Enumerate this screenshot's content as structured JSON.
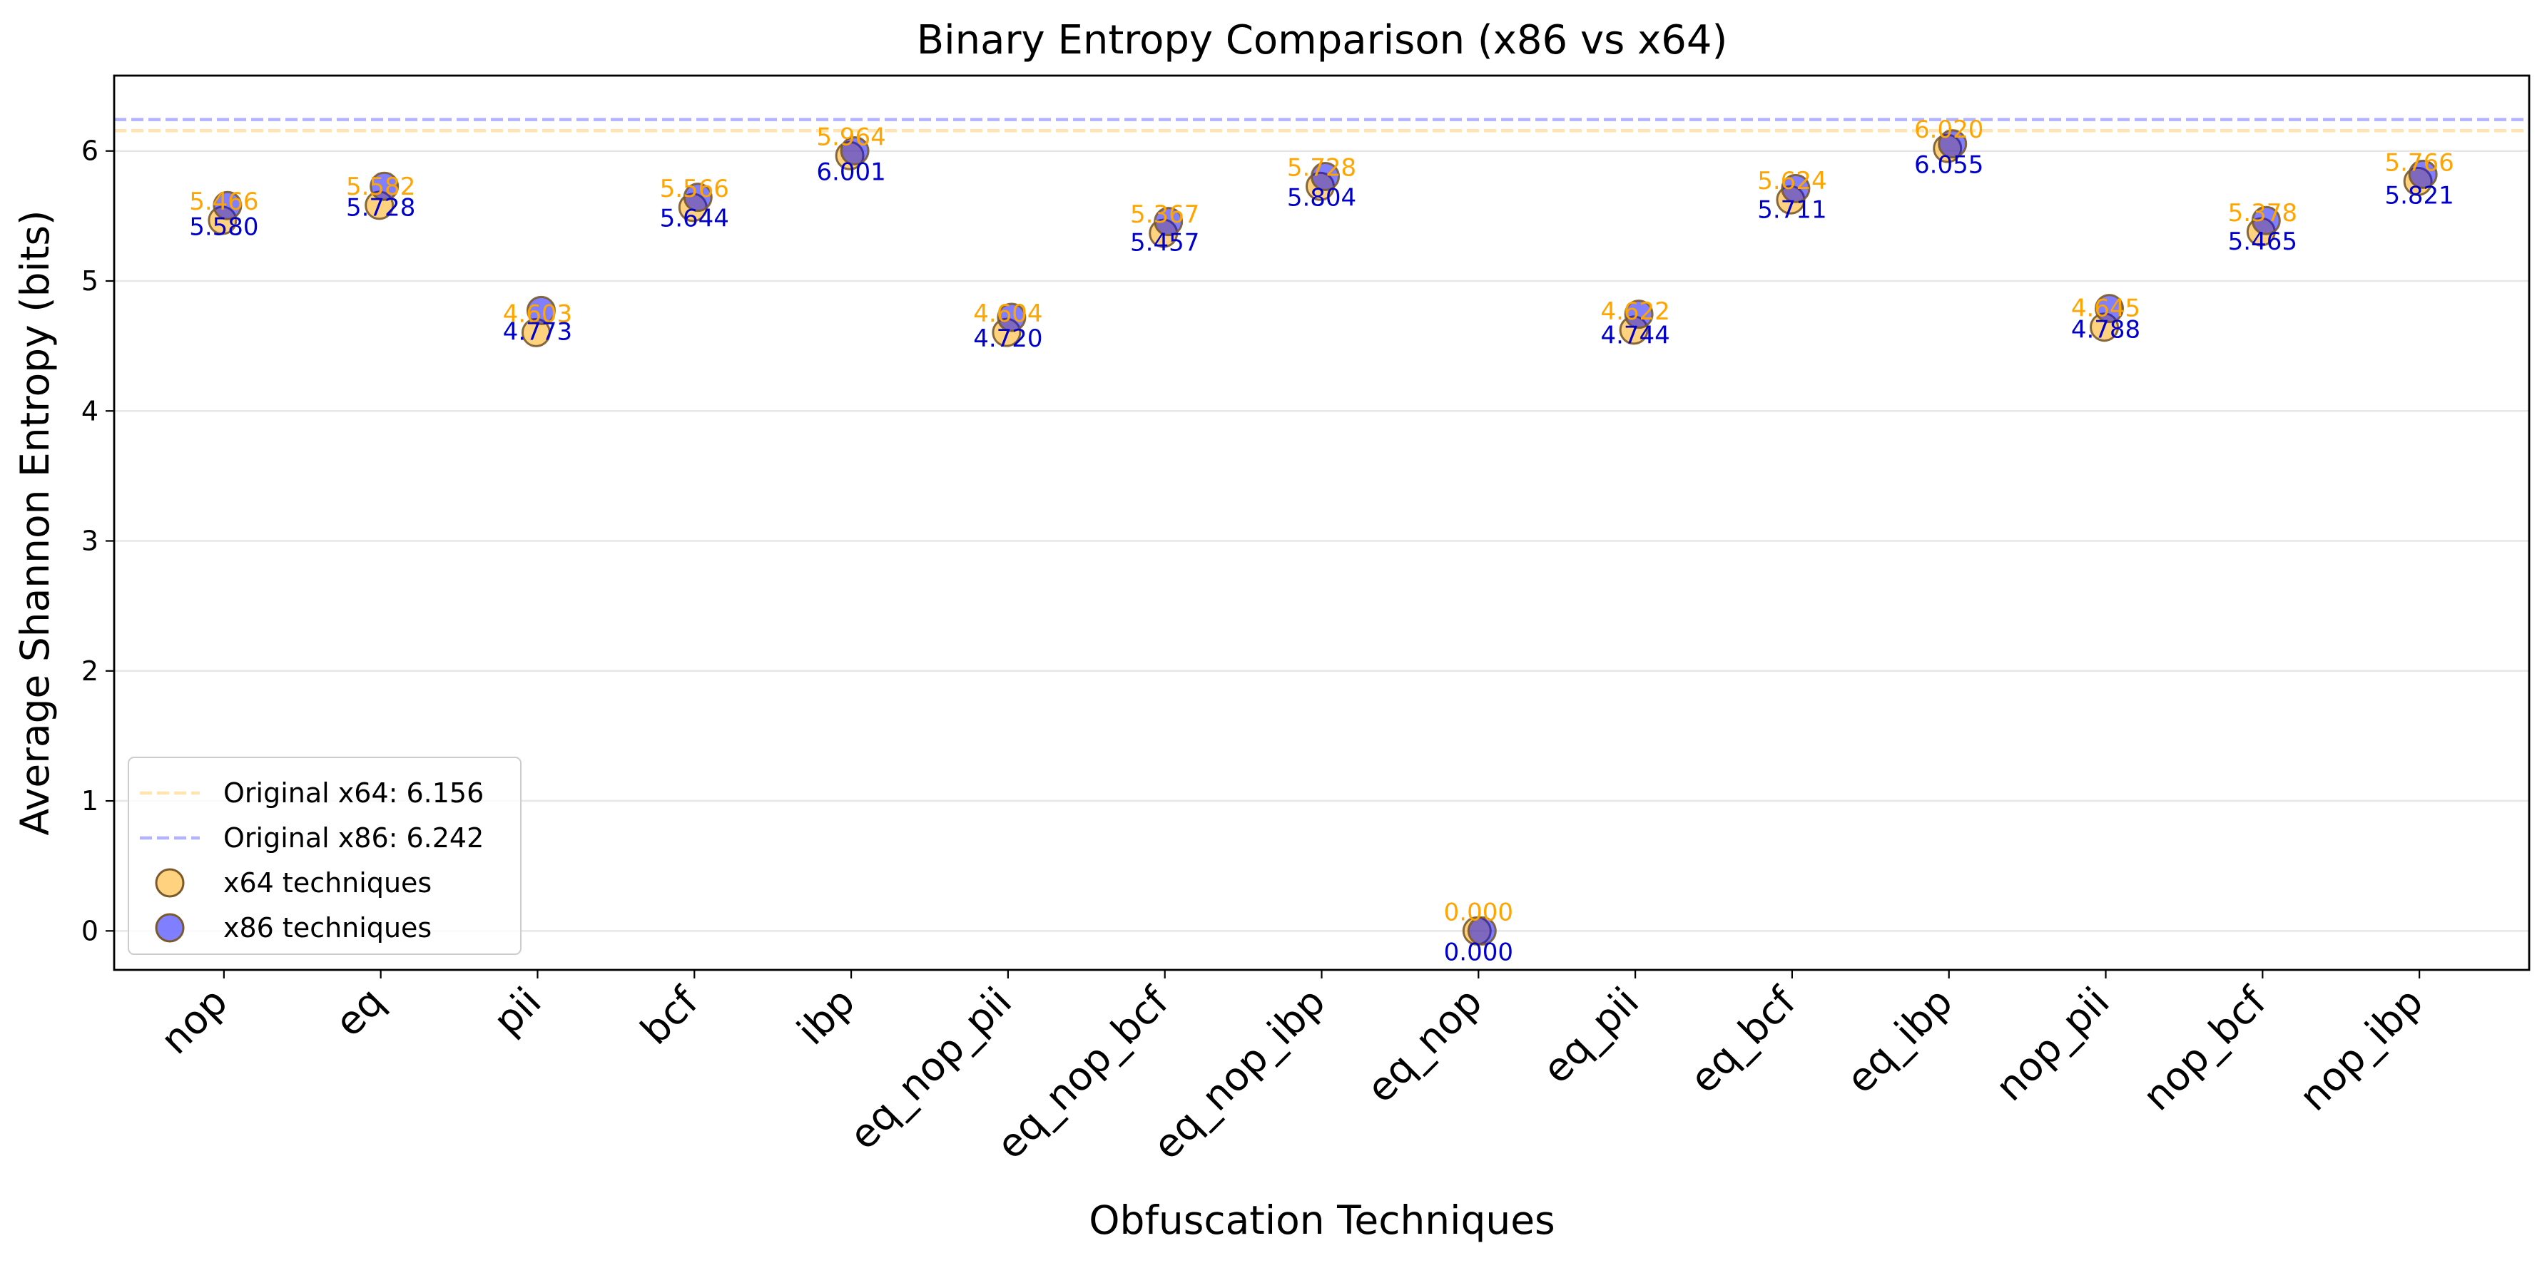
{
  "chart_data": {
    "type": "scatter",
    "title": "Binary Entropy Comparison (x86 vs x64)",
    "xlabel": "Obfuscation Techniques",
    "ylabel": "Average Shannon Entropy (bits)",
    "ylim": [
      -0.3,
      6.58
    ],
    "yticks": [
      0,
      1,
      2,
      3,
      4,
      5,
      6
    ],
    "grid": "y-only",
    "legend_position": "lower-left",
    "categories": [
      "nop",
      "eq",
      "pii",
      "bcf",
      "ibp",
      "eq_nop_pii",
      "eq_nop_bcf",
      "eq_nop_ibp",
      "eq_nop",
      "eq_pii",
      "eq_bcf",
      "eq_ibp",
      "nop_pii",
      "nop_bcf",
      "nop_ibp"
    ],
    "series": [
      {
        "name": "x64 techniques",
        "color": "#ffa500",
        "label_color": "#ffa500",
        "values": [
          5.466,
          5.582,
          4.603,
          5.566,
          5.964,
          4.604,
          5.367,
          5.728,
          0.0,
          4.622,
          5.624,
          6.02,
          4.645,
          5.378,
          5.766
        ],
        "labels": [
          "5.466",
          "5.582",
          "4.603",
          "5.566",
          "5.964",
          "4.604",
          "5.367",
          "5.728",
          "0.000",
          "4.622",
          "5.624",
          "6.020",
          "4.645",
          "5.378",
          "5.766"
        ]
      },
      {
        "name": "x86 techniques",
        "color": "#0000ff",
        "label_color": "#0000cc",
        "values": [
          5.58,
          5.728,
          4.773,
          5.644,
          6.001,
          4.72,
          5.457,
          5.804,
          0.0,
          4.744,
          5.711,
          6.055,
          4.788,
          5.465,
          5.821
        ],
        "labels": [
          "5.580",
          "5.728",
          "4.773",
          "5.644",
          "6.001",
          "4.720",
          "5.457",
          "5.804",
          "0.000",
          "4.744",
          "5.711",
          "6.055",
          "4.788",
          "5.465",
          "5.821"
        ]
      }
    ],
    "reference_lines": [
      {
        "label": "Original x64: 6.156",
        "value": 6.156,
        "color": "#ffa500"
      },
      {
        "label": "Original x86: 6.242",
        "value": 6.242,
        "color": "#0000ff"
      }
    ]
  }
}
